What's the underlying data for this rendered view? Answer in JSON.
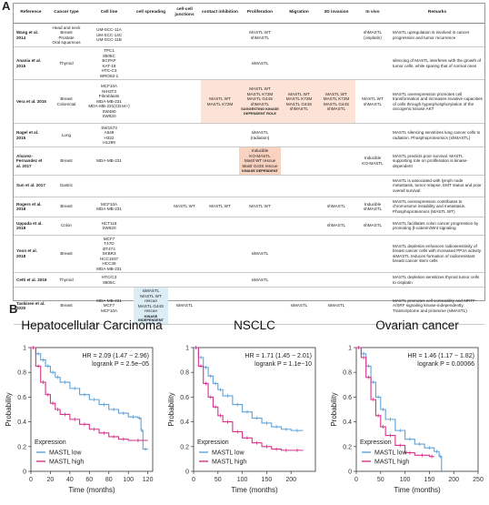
{
  "panel_a": {
    "letter": "A",
    "columns": [
      "Reference",
      "Cancer type",
      "Cell line",
      "cell spreading",
      "cell-cell junctions",
      "contact inhibition",
      "Proliferation",
      "Migration",
      "3D invasion",
      "In vivo",
      "Remarks"
    ],
    "rows": [
      {
        "ref": "Wang et al. 2014",
        "cancer": "Head and neck\nBreast\nProstate\nOral squamous",
        "cells": "UM-SCC-11A\nUM-SCC-14C\nUM-SCC-11B",
        "spreading": "",
        "junctions": "",
        "contact": "",
        "prolif": "MASTL WT\nshMASTL",
        "migration": "",
        "invasion": "",
        "invivo": "shMASTL\n(cisplatin)",
        "remarks": "MASTL upregulation is involved in cancer progression and tumor recurrence"
      },
      {
        "ref": "Anania et al. 2015",
        "cancer": "Thyroid",
        "cells": "TPC1\n8505C\nBCPAP\nKAT-18\nHTC-C3\nWRO82-1",
        "spreading": "",
        "junctions": "",
        "contact": "",
        "prolif": "siMASTL",
        "migration": "",
        "invasion": "",
        "invivo": "",
        "remarks": "silencing of MASTL interferes with the growth of tumor cells, while sparing that of normal ones"
      },
      {
        "ref": "Vera et al. 2015",
        "cancer": "Breast\nColorectal",
        "cells": "MCF10A\nNIH3T3\nFibroblasts\nMDA-MB-231\nMDA-MB-231(CD44+)\nSW480\nSW620",
        "spreading": "",
        "junctions": "",
        "contact": "MASTL WT\nMASTL K72M",
        "prolif": "MASTL WT\nMASTL K72M\nMASTL G44S\nshMASTL",
        "migration": "MASTL WT\nMASTL K72M\nMASTL G44S\nshMASTL",
        "invasion": "MASTL WT\nMASTL K72M\nMASTL G44S\nshMASTL",
        "invivo": "MASTL WT\nshMASTL",
        "remarks": "MASTL overexpression promotes cell transformation and increases invasive capacities of cells through hyperphosphorylation of the oncogenic kinase AKT",
        "tag": "SUGGESTING KINASE DEPENDENT ROLE"
      },
      {
        "ref": "Nagel et al. 2015",
        "cancer": "Lung",
        "cells": "SW1573\nA549\nH322\nH1299",
        "spreading": "",
        "junctions": "",
        "contact": "",
        "prolif": "siMASTL\n(radiation)",
        "migration": "",
        "invasion": "",
        "invivo": "",
        "remarks": "MASTL silencing sensitizes lung cancer cells to radiation. Phosphoproteomics (shMASTL)"
      },
      {
        "ref": "Alvarez-Fernandez et al. 2017",
        "cancer": "Breast",
        "cells": "MDA-MB-231",
        "spreading": "",
        "junctions": "",
        "contact": "",
        "prolif": "Inducible\nKO-MASTL\nMastl WT rescue\nMastl G43S rescue",
        "migration": "",
        "invasion": "",
        "invivo": "Inducible\nKO-MASTL",
        "remarks": "MASTL predicts poor survival. MASTL supporting role on proliferation is kinase-dependent",
        "tag": "KINASE DEPENDENT"
      },
      {
        "ref": "Sun et al. 2017",
        "cancer": "Gastric",
        "cells": "",
        "spreading": "",
        "junctions": "",
        "contact": "",
        "prolif": "",
        "migration": "",
        "invasion": "",
        "invivo": "",
        "remarks": "MASTL is associated with lymph node metastasis, tumor relapse, EMT status and poor overall survival"
      },
      {
        "ref": "Rogers et al. 2018",
        "cancer": "Breast",
        "cells": "MCF10A\nMDA-MB-231",
        "spreading": "",
        "junctions": "MASTL WT",
        "contact": "MASTL WT",
        "prolif": "MASTL WT",
        "migration": "",
        "invasion": "shMASTL",
        "invivo": "Inducible\nshMASTL",
        "remarks": "MASTL overexpression contributes to chromosome instability and metastasis. Phosphoproteomics (MASTL WT)"
      },
      {
        "ref": "Uppada et al. 2018",
        "cancer": "Colon",
        "cells": "HCT116\nSW620",
        "spreading": "",
        "junctions": "",
        "contact": "",
        "prolif": "",
        "migration": "",
        "invasion": "shMASTL",
        "invivo": "shMASTL",
        "remarks": "MASTL facilitates colon cancer progression by promoting β-catenin/Wnt signaling"
      },
      {
        "ref": "Yoon et al. 2018",
        "cancer": "Breast",
        "cells": "MCF7\nT47D\nBT474\nSKBR3\nHCC1937\nHCC38\nMDA-MB-231",
        "spreading": "",
        "junctions": "",
        "contact": "",
        "prolif": "siMASTL",
        "migration": "",
        "invasion": "",
        "invivo": "",
        "remarks": "MASTL depletion enhances radiosensitivity of breast cancer cells with increased PP2A activity. siMASTL reduces formation of radioresistant breast cancer stem cells"
      },
      {
        "ref": "Cetti et al. 2019",
        "cancer": "Thyroid",
        "cells": "HTC/C3\n8505C",
        "spreading": "",
        "junctions": "",
        "contact": "",
        "prolif": "siMASTL",
        "migration": "",
        "invasion": "",
        "invivo": "",
        "remarks": "MASTL depletion sensitizes thyroid tumor cells to cisplatin"
      },
      {
        "ref": "Taskinen et al. 2020",
        "cancer": "Breast",
        "cells": "MDA-MB-231\nMCF7\nMCF10A",
        "spreading": "siMASTL\nMASTL WT rescue\nMASTL G44S rescue",
        "junctions": "siMASTL",
        "contact": "",
        "prolif": "",
        "migration": "siMASTL",
        "invasion": "siMASTL",
        "invivo": "",
        "remarks": "MASTL promotes cell contractility and MRTF-A/SRF signaling kinase-independently. Transcriptome and proteome (siMASTL)",
        "tag": "KINASE INDEPENDENT"
      }
    ]
  },
  "panel_b": {
    "letter": "B",
    "colors": {
      "low": "#5ea2d8",
      "high": "#d6338a"
    },
    "ylabel": "Probability",
    "xlabel": "Time (months)",
    "legend_title": "Expression",
    "legend_low": "MASTL low",
    "legend_high": "MASTL high",
    "chart_data": [
      {
        "type": "line",
        "title": "Hepatocellular Carcinoma",
        "hr": "HR = 2.09 (1.47 − 2.96)",
        "logrank": "logrank P = 2.5e−05",
        "xlim": [
          0,
          125
        ],
        "ylim": [
          0,
          1
        ],
        "xticks": [
          0,
          20,
          40,
          60,
          80,
          100,
          120
        ],
        "yticks": [
          0,
          0.2,
          0.4,
          0.6,
          0.8,
          1
        ],
        "series": [
          {
            "name": "MASTL low",
            "x": [
              0,
              5,
              10,
              15,
              20,
              25,
              30,
              40,
              50,
              60,
              70,
              80,
              90,
              100,
              110,
              113,
              115,
              120
            ],
            "y": [
              1,
              0.95,
              0.9,
              0.85,
              0.8,
              0.76,
              0.72,
              0.67,
              0.62,
              0.58,
              0.54,
              0.5,
              0.47,
              0.44,
              0.43,
              0.33,
              0.18,
              0.18
            ]
          },
          {
            "name": "MASTL high",
            "x": [
              0,
              5,
              10,
              15,
              20,
              25,
              30,
              40,
              50,
              60,
              70,
              80,
              90,
              100,
              120
            ],
            "y": [
              1,
              0.85,
              0.72,
              0.62,
              0.55,
              0.5,
              0.46,
              0.42,
              0.38,
              0.34,
              0.31,
              0.28,
              0.26,
              0.25,
              0.25
            ]
          }
        ]
      },
      {
        "type": "line",
        "title": "NSCLC",
        "hr": "HR = 1.71 (1.45 − 2.01)",
        "logrank": "logrank P = 1.1e−10",
        "xlim": [
          0,
          250
        ],
        "ylim": [
          0,
          1
        ],
        "xticks": [
          0,
          50,
          100,
          150,
          200
        ],
        "yticks": [
          0,
          0.2,
          0.4,
          0.6,
          0.8,
          1
        ],
        "series": [
          {
            "name": "MASTL low",
            "x": [
              0,
              10,
              20,
              30,
              40,
              50,
              60,
              80,
              100,
              120,
              140,
              160,
              180,
              200,
              225
            ],
            "y": [
              1,
              0.92,
              0.84,
              0.77,
              0.71,
              0.66,
              0.61,
              0.54,
              0.48,
              0.43,
              0.39,
              0.36,
              0.34,
              0.33,
              0.33
            ]
          },
          {
            "name": "MASTL high",
            "x": [
              0,
              10,
              20,
              30,
              40,
              50,
              60,
              80,
              100,
              120,
              140,
              160,
              180,
              200,
              225
            ],
            "y": [
              1,
              0.85,
              0.71,
              0.6,
              0.52,
              0.45,
              0.4,
              0.32,
              0.27,
              0.23,
              0.2,
              0.18,
              0.17,
              0.17,
              0.17
            ]
          }
        ]
      },
      {
        "type": "line",
        "title": "Ovarian cancer",
        "hr": "HR = 1.46 (1.17 − 1.82)",
        "logrank": "logrank P = 0.00066",
        "xlim": [
          0,
          250
        ],
        "ylim": [
          0,
          1
        ],
        "xticks": [
          0,
          50,
          100,
          150,
          200,
          250
        ],
        "yticks": [
          0,
          0.2,
          0.4,
          0.6,
          0.8,
          1
        ],
        "series": [
          {
            "name": "MASTL low",
            "x": [
              0,
              10,
              20,
              30,
              40,
              50,
              60,
              80,
              100,
              120,
              140,
              160,
              170,
              175
            ],
            "y": [
              1,
              0.95,
              0.85,
              0.72,
              0.6,
              0.5,
              0.42,
              0.33,
              0.26,
              0.22,
              0.19,
              0.16,
              0.12,
              0
            ]
          },
          {
            "name": "MASTL high",
            "x": [
              0,
              10,
              20,
              30,
              40,
              50,
              60,
              80,
              100,
              120,
              150,
              160
            ],
            "y": [
              1,
              0.92,
              0.76,
              0.58,
              0.45,
              0.36,
              0.29,
              0.21,
              0.15,
              0.13,
              0.12,
              0.12
            ]
          }
        ]
      }
    ]
  }
}
